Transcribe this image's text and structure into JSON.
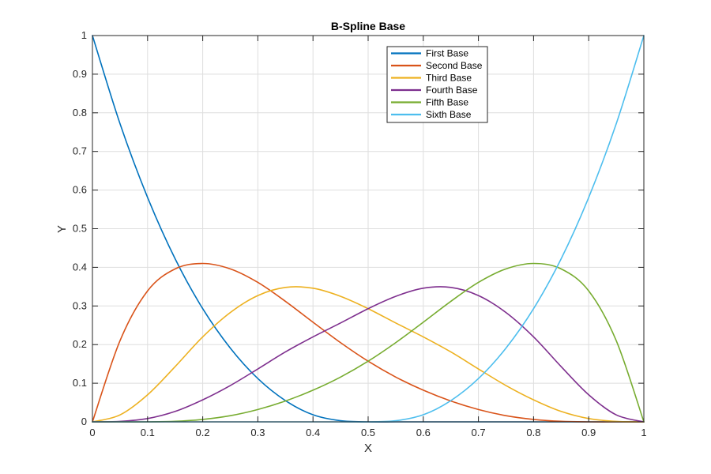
{
  "chart_data": {
    "type": "line",
    "title": "B-Spline Base",
    "xlabel": "X",
    "ylabel": "Y",
    "xlim": [
      0,
      1
    ],
    "ylim": [
      0,
      1
    ],
    "xticks": [
      0,
      0.1,
      0.2,
      0.3,
      0.4,
      0.5,
      0.6,
      0.7,
      0.8,
      0.9,
      1
    ],
    "xtick_labels": [
      "0",
      "0.1",
      "0.2",
      "0.3",
      "0.4",
      "0.5",
      "0.6",
      "0.7",
      "0.8",
      "0.9",
      "1"
    ],
    "yticks": [
      0,
      0.1,
      0.2,
      0.3,
      0.4,
      0.5,
      0.6,
      0.7,
      0.8,
      0.9,
      1
    ],
    "ytick_labels": [
      "0",
      "0.1",
      "0.2",
      "0.3",
      "0.4",
      "0.5",
      "0.6",
      "0.7",
      "0.8",
      "0.9",
      "1"
    ],
    "grid": true,
    "legend_position": "top-right",
    "x": [
      0,
      0.05,
      0.1,
      0.15,
      0.2,
      0.25,
      0.3,
      0.35,
      0.4,
      0.45,
      0.5,
      0.55,
      0.6,
      0.65,
      0.7,
      0.75,
      0.8,
      0.85,
      0.9,
      0.95,
      1
    ],
    "series": [
      {
        "name": "First Base",
        "color": "#0072BD",
        "values": [
          1,
          0.772,
          0.581,
          0.422,
          0.293,
          0.191,
          0.112,
          0.055,
          0.0183,
          0.0029,
          0,
          0,
          0,
          0,
          0,
          0,
          0,
          0,
          0,
          0,
          0
        ]
      },
      {
        "name": "Second Base",
        "color": "#D95319",
        "values": [
          0,
          0.21,
          0.339,
          0.396,
          0.41,
          0.396,
          0.361,
          0.312,
          0.258,
          0.205,
          0.157,
          0.116,
          0.082,
          0.054,
          0.032,
          0.016,
          0.0063,
          0.0013,
          0,
          0,
          0
        ]
      },
      {
        "name": "Third Base",
        "color": "#EDB120",
        "values": [
          0,
          0.018,
          0.07,
          0.143,
          0.22,
          0.283,
          0.327,
          0.348,
          0.346,
          0.325,
          0.293,
          0.256,
          0.22,
          0.181,
          0.137,
          0.094,
          0.057,
          0.027,
          0.0085,
          0.0012,
          0
        ]
      },
      {
        "name": "Fourth Base",
        "color": "#7E2F8E",
        "values": [
          0,
          0.0012,
          0.0085,
          0.027,
          0.057,
          0.094,
          0.137,
          0.181,
          0.22,
          0.256,
          0.293,
          0.325,
          0.346,
          0.348,
          0.327,
          0.283,
          0.22,
          0.143,
          0.07,
          0.018,
          0
        ]
      },
      {
        "name": "Fifth Base",
        "color": "#77AC30",
        "values": [
          0,
          0,
          0,
          0.0013,
          0.0063,
          0.016,
          0.032,
          0.054,
          0.082,
          0.116,
          0.157,
          0.205,
          0.258,
          0.312,
          0.361,
          0.396,
          0.41,
          0.396,
          0.339,
          0.21,
          0
        ]
      },
      {
        "name": "Sixth Base",
        "color": "#4DBEEE",
        "values": [
          0,
          0,
          0,
          0,
          0,
          0,
          0,
          0,
          0,
          0,
          0,
          0.0029,
          0.0183,
          0.055,
          0.112,
          0.191,
          0.293,
          0.422,
          0.581,
          0.772,
          1
        ]
      }
    ]
  }
}
